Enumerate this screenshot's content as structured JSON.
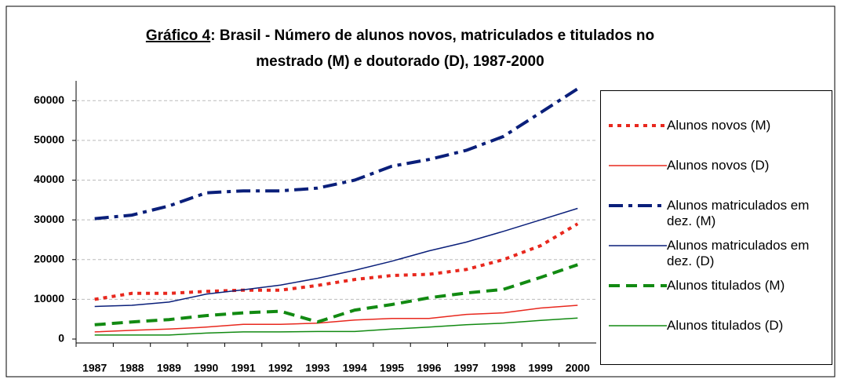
{
  "chart_data": {
    "type": "line",
    "title": [
      "Gráfico 4: Brasil - Número de alunos novos, matriculados e titulados  no",
      "mestrado (M) e doutorado (D), 1987-2000"
    ],
    "categories": [
      "1987",
      "1988",
      "1989",
      "1990",
      "1991",
      "1992",
      "1993",
      "1994",
      "1995",
      "1996",
      "1997",
      "1998",
      "1999",
      "2000"
    ],
    "ylim": [
      0,
      65000
    ],
    "yticks": [
      0,
      10000,
      20000,
      30000,
      40000,
      50000,
      60000
    ],
    "grid": true,
    "legend": "right",
    "series": [
      {
        "name": "Alunos novos (M)",
        "color": "#e8281e",
        "dash": "dotted",
        "values": [
          10000,
          11500,
          11500,
          12000,
          12300,
          12300,
          13500,
          15000,
          16000,
          16300,
          17500,
          20000,
          23500,
          29000
        ]
      },
      {
        "name": "Alunos novos (D)",
        "color": "#e8281e",
        "dash": "solid",
        "values": [
          1800,
          2200,
          2500,
          3000,
          3700,
          3700,
          4000,
          4800,
          5200,
          5200,
          6200,
          6600,
          7800,
          8500
        ]
      },
      {
        "name": "Alunos matriculados em dez. (M)",
        "color": "#0a1f7a",
        "dash": "dashdot",
        "values": [
          30300,
          31200,
          33500,
          36800,
          37300,
          37300,
          38000,
          40000,
          43500,
          45200,
          47500,
          51000,
          57000,
          63000
        ]
      },
      {
        "name": "Alunos matriculados em dez. (D)",
        "color": "#0a1f7a",
        "dash": "solid",
        "values": [
          8200,
          8500,
          9300,
          11300,
          12400,
          13600,
          15300,
          17300,
          19600,
          22200,
          24400,
          27100,
          30000,
          32900
        ]
      },
      {
        "name": "Alunos titulados (M)",
        "color": "#128a12",
        "dash": "dashed",
        "values": [
          3600,
          4300,
          4900,
          5900,
          6600,
          7000,
          4300,
          7300,
          8700,
          10400,
          11600,
          12500,
          15500,
          18700
        ]
      },
      {
        "name": "Alunos titulados (D)",
        "color": "#128a12",
        "dash": "solid",
        "values": [
          1000,
          1000,
          1000,
          1500,
          1800,
          1800,
          1900,
          1900,
          2500,
          3000,
          3600,
          4000,
          4700,
          5300
        ]
      }
    ]
  }
}
